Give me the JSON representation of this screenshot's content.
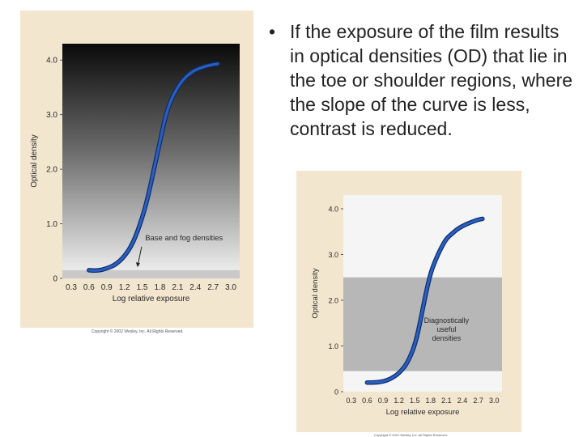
{
  "slide": {
    "bullet": "•",
    "text": "If the exposure of the film results in optical densities (OD) that lie in the toe or shoulder regions, where the slope of the curve is less, contrast is reduced."
  },
  "colors": {
    "curve": "#2a5fbf",
    "panel": "#f2e6cf"
  },
  "chart_data": [
    {
      "type": "line",
      "title": "",
      "xlabel": "Log relative exposure",
      "ylabel": "Optical density",
      "xlim": [
        0.15,
        3.15
      ],
      "ylim": [
        0,
        4.3
      ],
      "x_ticks": [
        "0.3",
        "0.6",
        "0.9",
        "1.2",
        "1.5",
        "1.8",
        "2.1",
        "2.4",
        "2.7",
        "3.0"
      ],
      "y_ticks": [
        "0",
        "1.0",
        "2.0",
        "3.0",
        "4.0"
      ],
      "series": [
        {
          "x": [
            0.6,
            0.75,
            0.9,
            1.05,
            1.2,
            1.35,
            1.5,
            1.6,
            1.7,
            1.8,
            1.9,
            2.0,
            2.1,
            2.2,
            2.3,
            2.4,
            2.55,
            2.7,
            2.78
          ],
          "y": [
            0.15,
            0.14,
            0.18,
            0.25,
            0.4,
            0.65,
            1.1,
            1.5,
            2.0,
            2.5,
            3.0,
            3.3,
            3.5,
            3.65,
            3.75,
            3.82,
            3.88,
            3.92,
            3.93
          ]
        }
      ],
      "annotations": [
        {
          "text": "Base and fog densities",
          "x": 1.55,
          "y": 0.7
        }
      ],
      "shaded_bands": [
        {
          "y_from": 0,
          "y_to": 0.15
        }
      ],
      "copyright": "Copyright © 2002 Wesley, Inc. All Rights Reserved."
    },
    {
      "type": "line",
      "title": "",
      "xlabel": "Log  relative  exposure",
      "ylabel": "Optical  density",
      "xlim": [
        0.15,
        3.15
      ],
      "ylim": [
        0,
        4.3
      ],
      "x_ticks": [
        "0.3",
        "0.6",
        "0.9",
        "1.2",
        "1.5",
        "1.8",
        "2.1",
        "2.4",
        "2.7",
        "3.0"
      ],
      "y_ticks": [
        "0",
        "1.0",
        "2.0",
        "3.0",
        "4.0"
      ],
      "series": [
        {
          "x": [
            0.6,
            0.75,
            0.9,
            1.05,
            1.2,
            1.35,
            1.5,
            1.6,
            1.7,
            1.8,
            1.9,
            2.0,
            2.1,
            2.2,
            2.3,
            2.4,
            2.55,
            2.7,
            2.78
          ],
          "y": [
            0.2,
            0.2,
            0.22,
            0.28,
            0.4,
            0.6,
            1.0,
            1.5,
            2.1,
            2.6,
            2.9,
            3.15,
            3.35,
            3.45,
            3.55,
            3.62,
            3.7,
            3.76,
            3.78
          ]
        }
      ],
      "annotations": [
        {
          "text": "Diagnostically\nuseful\ndensities",
          "x": 2.1,
          "y": 1.5
        }
      ],
      "shaded_bands": [
        {
          "y_from": 0.45,
          "y_to": 2.5
        }
      ],
      "copyright": "Copyright © 2001 Wesley, Inc. All Rights Reserved."
    }
  ]
}
